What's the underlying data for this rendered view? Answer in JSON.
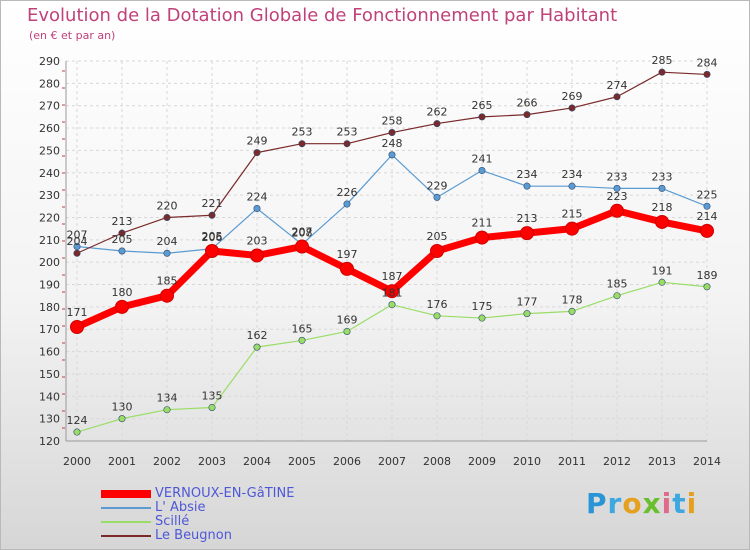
{
  "header": {
    "title": "Evolution de la Dotation Globale de Fonctionnement par Habitant",
    "subtitle": "(en € et par an)"
  },
  "brand": {
    "logo_text": "Proxiti",
    "colors": [
      "#2a95d6",
      "#3fa7e0",
      "#e6a020",
      "#6bbf2e",
      "#e06a8a",
      "#3fa7e0",
      "#e6a020"
    ]
  },
  "chart_data": {
    "type": "line",
    "title": "Evolution de la Dotation Globale de Fonctionnement par Habitant",
    "subtitle": "(en € et par an)",
    "xlabel": "",
    "ylabel": "",
    "ylim": [
      120,
      290
    ],
    "ytick_step": 10,
    "grid": true,
    "legend_position": "bottom-left",
    "categories": [
      "2000",
      "2001",
      "2002",
      "2003",
      "2004",
      "2005",
      "2006",
      "2007",
      "2008",
      "2009",
      "2010",
      "2011",
      "2012",
      "2013",
      "2014"
    ],
    "series": [
      {
        "name": "VERNOUX-EN-GâTINE",
        "color": "#ff0000",
        "emphasis": true,
        "values": [
          171,
          180,
          185,
          205,
          203,
          207,
          197,
          187,
          205,
          211,
          213,
          215,
          223,
          218,
          214
        ]
      },
      {
        "name": "L' Absie",
        "color": "#5b9bd2",
        "emphasis": false,
        "values": [
          207,
          205,
          204,
          206,
          224,
          208,
          226,
          248,
          229,
          241,
          234,
          234,
          233,
          233,
          225
        ]
      },
      {
        "name": "Scillé",
        "color": "#99dd66",
        "emphasis": false,
        "values": [
          124,
          130,
          134,
          135,
          162,
          165,
          169,
          181,
          176,
          175,
          177,
          178,
          185,
          191,
          189
        ]
      },
      {
        "name": "Le Beugnon",
        "color": "#7a2a2a",
        "emphasis": false,
        "values": [
          204,
          213,
          220,
          221,
          249,
          253,
          253,
          258,
          262,
          265,
          266,
          269,
          274,
          285,
          284
        ]
      }
    ]
  }
}
